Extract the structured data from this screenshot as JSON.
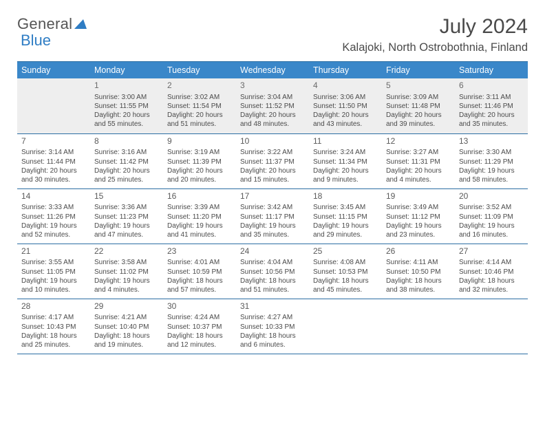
{
  "header": {
    "logo_word1": "General",
    "logo_word2": "Blue",
    "month_year": "July 2024",
    "location": "Kalajoki, North Ostrobothnia, Finland"
  },
  "colors": {
    "header_bg": "#3a87c9",
    "header_border": "#2a6da3",
    "shade_bg": "#eeeeee",
    "text": "#4a4a4a"
  },
  "weekdays": [
    "Sunday",
    "Monday",
    "Tuesday",
    "Wednesday",
    "Thursday",
    "Friday",
    "Saturday"
  ],
  "grid": [
    [
      {
        "n": "",
        "l1": "",
        "l2": "",
        "l3": "",
        "l4": ""
      },
      {
        "n": "1",
        "l1": "Sunrise: 3:00 AM",
        "l2": "Sunset: 11:55 PM",
        "l3": "Daylight: 20 hours",
        "l4": "and 55 minutes."
      },
      {
        "n": "2",
        "l1": "Sunrise: 3:02 AM",
        "l2": "Sunset: 11:54 PM",
        "l3": "Daylight: 20 hours",
        "l4": "and 51 minutes."
      },
      {
        "n": "3",
        "l1": "Sunrise: 3:04 AM",
        "l2": "Sunset: 11:52 PM",
        "l3": "Daylight: 20 hours",
        "l4": "and 48 minutes."
      },
      {
        "n": "4",
        "l1": "Sunrise: 3:06 AM",
        "l2": "Sunset: 11:50 PM",
        "l3": "Daylight: 20 hours",
        "l4": "and 43 minutes."
      },
      {
        "n": "5",
        "l1": "Sunrise: 3:09 AM",
        "l2": "Sunset: 11:48 PM",
        "l3": "Daylight: 20 hours",
        "l4": "and 39 minutes."
      },
      {
        "n": "6",
        "l1": "Sunrise: 3:11 AM",
        "l2": "Sunset: 11:46 PM",
        "l3": "Daylight: 20 hours",
        "l4": "and 35 minutes."
      }
    ],
    [
      {
        "n": "7",
        "l1": "Sunrise: 3:14 AM",
        "l2": "Sunset: 11:44 PM",
        "l3": "Daylight: 20 hours",
        "l4": "and 30 minutes."
      },
      {
        "n": "8",
        "l1": "Sunrise: 3:16 AM",
        "l2": "Sunset: 11:42 PM",
        "l3": "Daylight: 20 hours",
        "l4": "and 25 minutes."
      },
      {
        "n": "9",
        "l1": "Sunrise: 3:19 AM",
        "l2": "Sunset: 11:39 PM",
        "l3": "Daylight: 20 hours",
        "l4": "and 20 minutes."
      },
      {
        "n": "10",
        "l1": "Sunrise: 3:22 AM",
        "l2": "Sunset: 11:37 PM",
        "l3": "Daylight: 20 hours",
        "l4": "and 15 minutes."
      },
      {
        "n": "11",
        "l1": "Sunrise: 3:24 AM",
        "l2": "Sunset: 11:34 PM",
        "l3": "Daylight: 20 hours",
        "l4": "and 9 minutes."
      },
      {
        "n": "12",
        "l1": "Sunrise: 3:27 AM",
        "l2": "Sunset: 11:31 PM",
        "l3": "Daylight: 20 hours",
        "l4": "and 4 minutes."
      },
      {
        "n": "13",
        "l1": "Sunrise: 3:30 AM",
        "l2": "Sunset: 11:29 PM",
        "l3": "Daylight: 19 hours",
        "l4": "and 58 minutes."
      }
    ],
    [
      {
        "n": "14",
        "l1": "Sunrise: 3:33 AM",
        "l2": "Sunset: 11:26 PM",
        "l3": "Daylight: 19 hours",
        "l4": "and 52 minutes."
      },
      {
        "n": "15",
        "l1": "Sunrise: 3:36 AM",
        "l2": "Sunset: 11:23 PM",
        "l3": "Daylight: 19 hours",
        "l4": "and 47 minutes."
      },
      {
        "n": "16",
        "l1": "Sunrise: 3:39 AM",
        "l2": "Sunset: 11:20 PM",
        "l3": "Daylight: 19 hours",
        "l4": "and 41 minutes."
      },
      {
        "n": "17",
        "l1": "Sunrise: 3:42 AM",
        "l2": "Sunset: 11:17 PM",
        "l3": "Daylight: 19 hours",
        "l4": "and 35 minutes."
      },
      {
        "n": "18",
        "l1": "Sunrise: 3:45 AM",
        "l2": "Sunset: 11:15 PM",
        "l3": "Daylight: 19 hours",
        "l4": "and 29 minutes."
      },
      {
        "n": "19",
        "l1": "Sunrise: 3:49 AM",
        "l2": "Sunset: 11:12 PM",
        "l3": "Daylight: 19 hours",
        "l4": "and 23 minutes."
      },
      {
        "n": "20",
        "l1": "Sunrise: 3:52 AM",
        "l2": "Sunset: 11:09 PM",
        "l3": "Daylight: 19 hours",
        "l4": "and 16 minutes."
      }
    ],
    [
      {
        "n": "21",
        "l1": "Sunrise: 3:55 AM",
        "l2": "Sunset: 11:05 PM",
        "l3": "Daylight: 19 hours",
        "l4": "and 10 minutes."
      },
      {
        "n": "22",
        "l1": "Sunrise: 3:58 AM",
        "l2": "Sunset: 11:02 PM",
        "l3": "Daylight: 19 hours",
        "l4": "and 4 minutes."
      },
      {
        "n": "23",
        "l1": "Sunrise: 4:01 AM",
        "l2": "Sunset: 10:59 PM",
        "l3": "Daylight: 18 hours",
        "l4": "and 57 minutes."
      },
      {
        "n": "24",
        "l1": "Sunrise: 4:04 AM",
        "l2": "Sunset: 10:56 PM",
        "l3": "Daylight: 18 hours",
        "l4": "and 51 minutes."
      },
      {
        "n": "25",
        "l1": "Sunrise: 4:08 AM",
        "l2": "Sunset: 10:53 PM",
        "l3": "Daylight: 18 hours",
        "l4": "and 45 minutes."
      },
      {
        "n": "26",
        "l1": "Sunrise: 4:11 AM",
        "l2": "Sunset: 10:50 PM",
        "l3": "Daylight: 18 hours",
        "l4": "and 38 minutes."
      },
      {
        "n": "27",
        "l1": "Sunrise: 4:14 AM",
        "l2": "Sunset: 10:46 PM",
        "l3": "Daylight: 18 hours",
        "l4": "and 32 minutes."
      }
    ],
    [
      {
        "n": "28",
        "l1": "Sunrise: 4:17 AM",
        "l2": "Sunset: 10:43 PM",
        "l3": "Daylight: 18 hours",
        "l4": "and 25 minutes."
      },
      {
        "n": "29",
        "l1": "Sunrise: 4:21 AM",
        "l2": "Sunset: 10:40 PM",
        "l3": "Daylight: 18 hours",
        "l4": "and 19 minutes."
      },
      {
        "n": "30",
        "l1": "Sunrise: 4:24 AM",
        "l2": "Sunset: 10:37 PM",
        "l3": "Daylight: 18 hours",
        "l4": "and 12 minutes."
      },
      {
        "n": "31",
        "l1": "Sunrise: 4:27 AM",
        "l2": "Sunset: 10:33 PM",
        "l3": "Daylight: 18 hours",
        "l4": "and 6 minutes."
      },
      {
        "n": "",
        "l1": "",
        "l2": "",
        "l3": "",
        "l4": ""
      },
      {
        "n": "",
        "l1": "",
        "l2": "",
        "l3": "",
        "l4": ""
      },
      {
        "n": "",
        "l1": "",
        "l2": "",
        "l3": "",
        "l4": ""
      }
    ]
  ]
}
